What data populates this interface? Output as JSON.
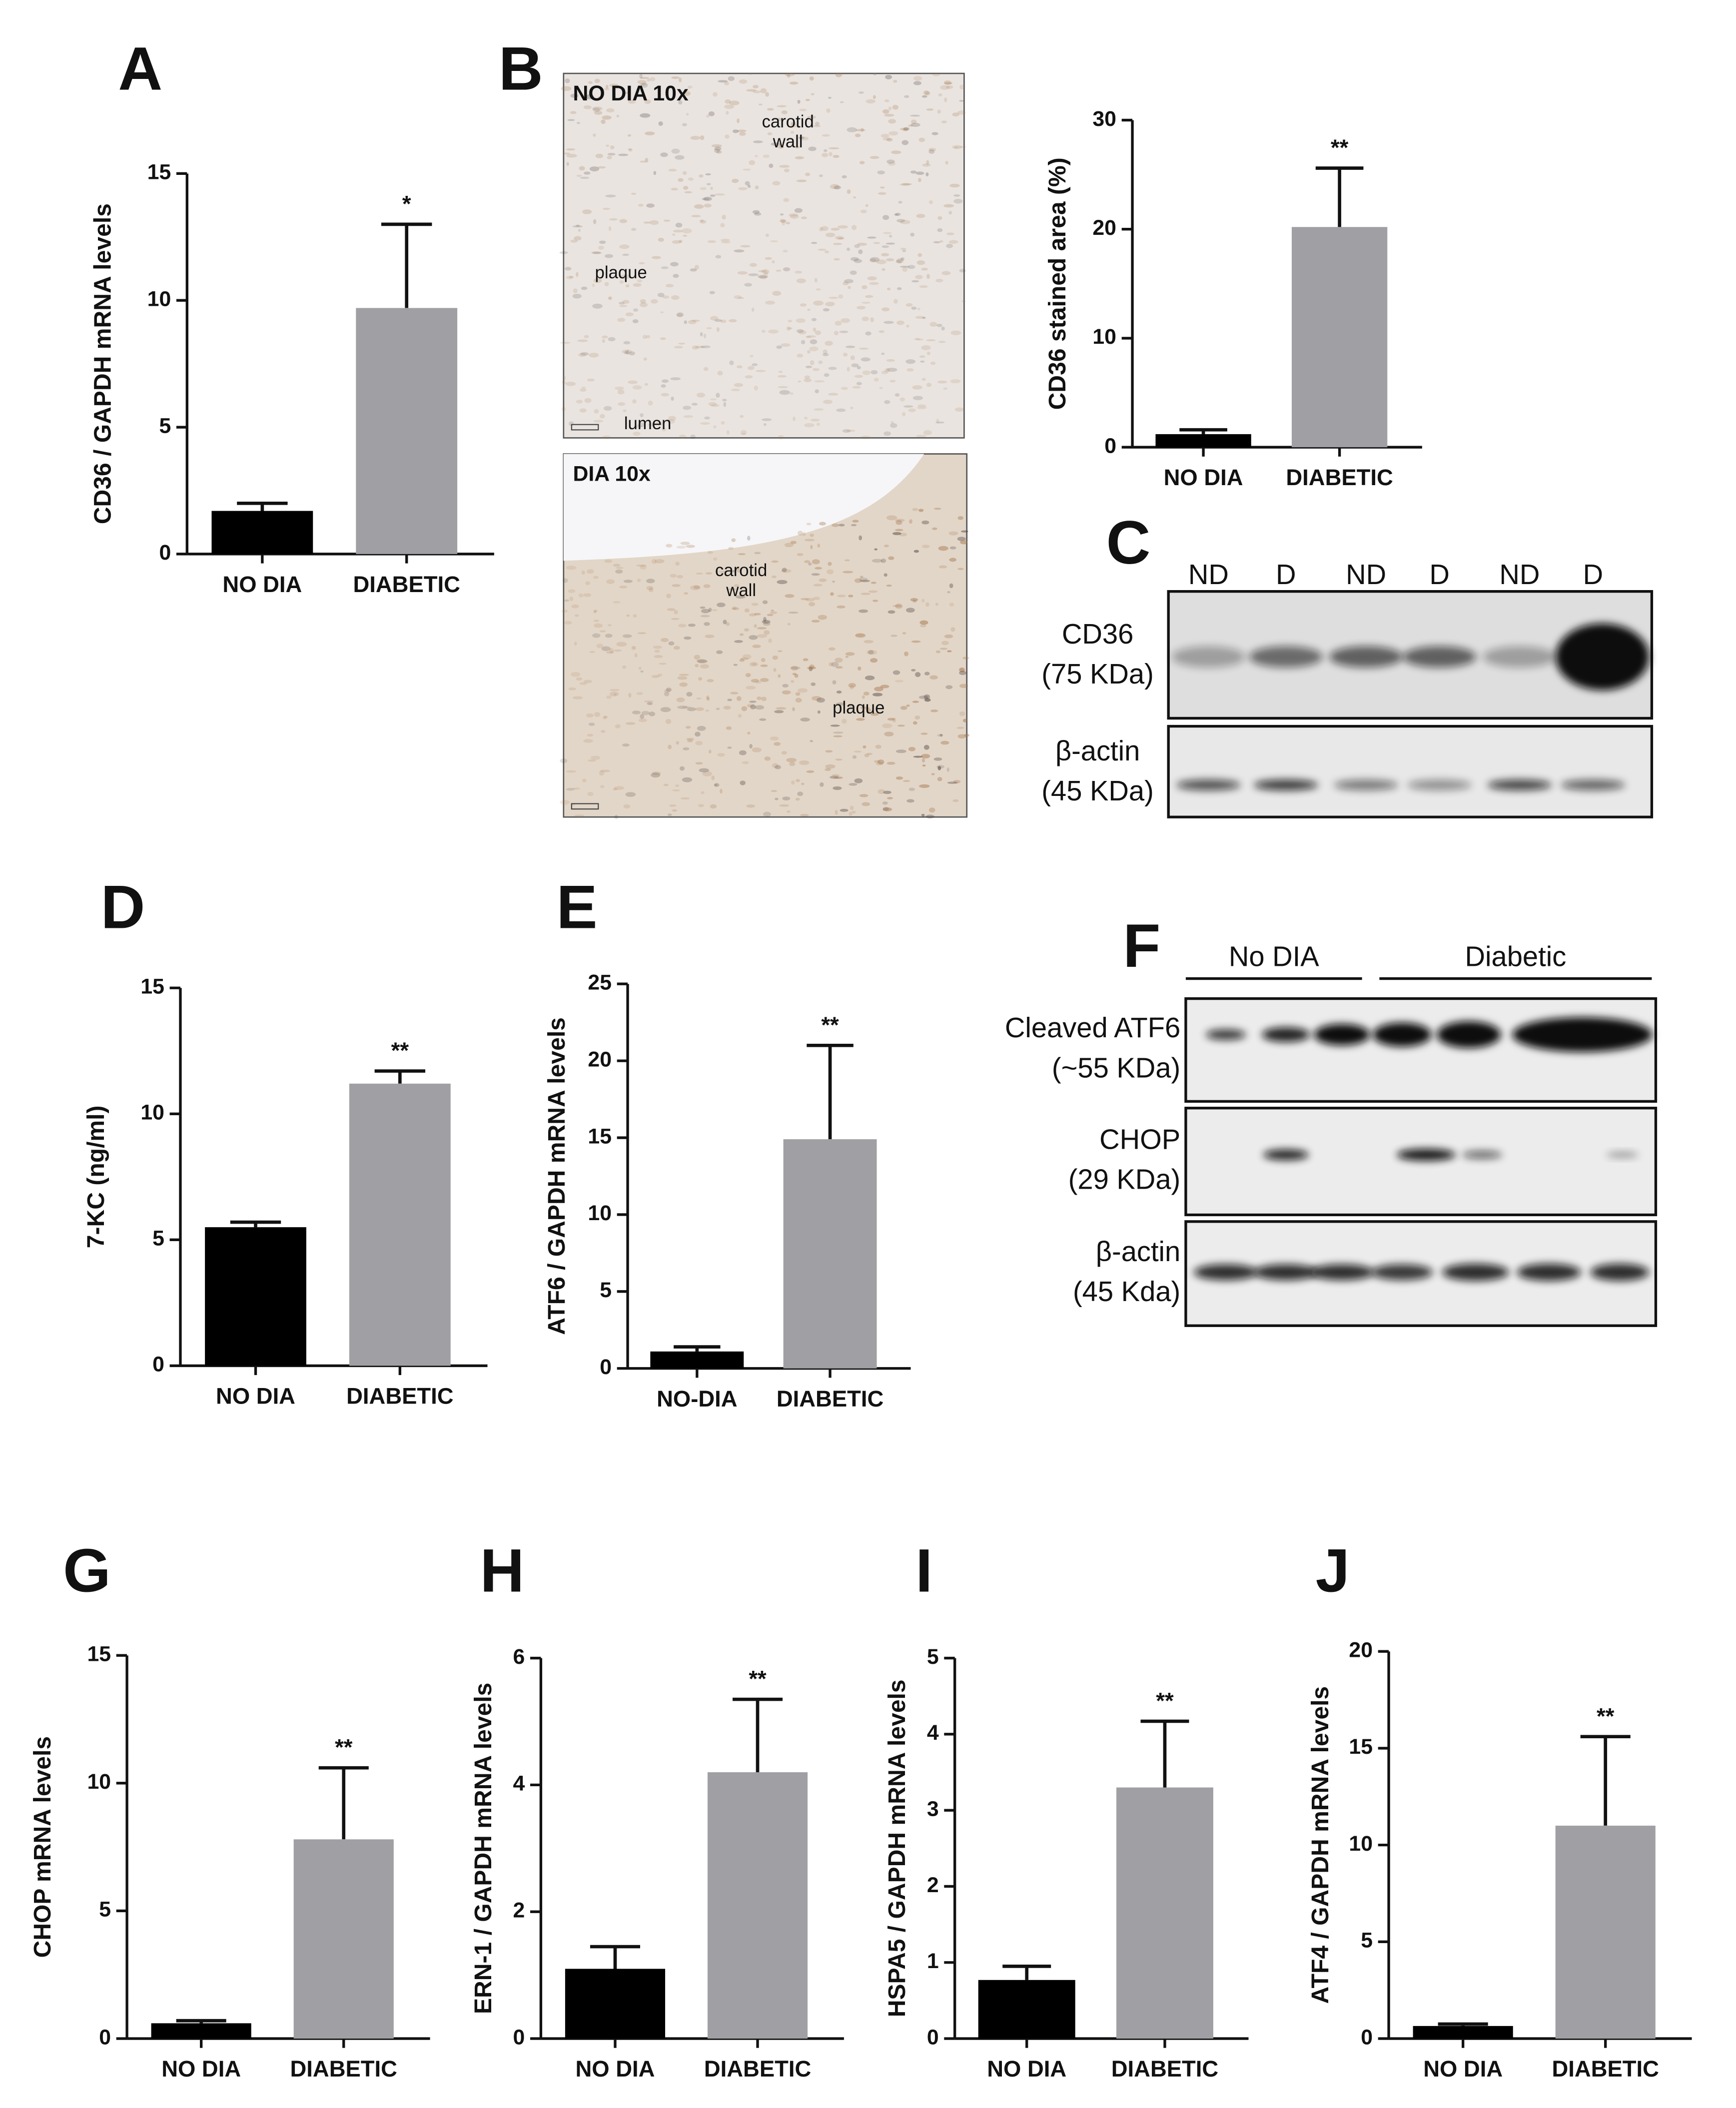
{
  "chart_data": [
    {
      "type": "bar",
      "panel": "A",
      "ylabel": "CD36 / GAPDH mRNA levels",
      "categories": [
        "NO DIA",
        "DIABETIC"
      ],
      "values": [
        1.7,
        9.7
      ],
      "errors": [
        0.3,
        3.3
      ],
      "colors": [
        "#000000",
        "#a0a0a4"
      ],
      "ylim": [
        0,
        15
      ],
      "yticks": [
        0,
        5,
        10,
        15
      ],
      "annotation": "*"
    },
    {
      "type": "bar",
      "ylabel": "CD36 stained area (%)",
      "categories": [
        "NO DIA",
        "DIABETIC"
      ],
      "values": [
        1.2,
        20.2
      ],
      "errors": [
        0.4,
        5.4
      ],
      "colors": [
        "#000000",
        "#a0a0a4"
      ],
      "ylim": [
        0,
        30
      ],
      "yticks": [
        0,
        10,
        20,
        30
      ],
      "annotation": "**"
    },
    {
      "type": "bar",
      "panel": "D",
      "ylabel": "7-KC (ng/ml)",
      "categories": [
        "NO DIA",
        "DIABETIC"
      ],
      "values": [
        5.5,
        11.2
      ],
      "errors": [
        0.2,
        0.5
      ],
      "colors": [
        "#000000",
        "#a0a0a4"
      ],
      "ylim": [
        0,
        15
      ],
      "yticks": [
        0,
        5,
        10,
        15
      ],
      "annotation": "**"
    },
    {
      "type": "bar",
      "panel": "E",
      "ylabel": "ATF6 / GAPDH mRNA levels",
      "categories": [
        "NO-DIA",
        "DIABETIC"
      ],
      "values": [
        1.1,
        14.9
      ],
      "errors": [
        0.3,
        6.1
      ],
      "colors": [
        "#000000",
        "#a0a0a4"
      ],
      "ylim": [
        0,
        25
      ],
      "yticks": [
        0,
        5,
        10,
        15,
        20,
        25
      ],
      "annotation": "**"
    },
    {
      "type": "bar",
      "panel": "G",
      "ylabel": "CHOP mRNA levels",
      "categories": [
        "NO DIA",
        "DIABETIC"
      ],
      "values": [
        0.6,
        7.8
      ],
      "errors": [
        0.1,
        2.8
      ],
      "colors": [
        "#000000",
        "#a0a0a4"
      ],
      "ylim": [
        0,
        15
      ],
      "yticks": [
        0,
        5,
        10,
        15
      ],
      "annotation": "**"
    },
    {
      "type": "bar",
      "panel": "H",
      "ylabel": "ERN-1 / GAPDH mRNA levels",
      "categories": [
        "NO DIA",
        "DIABETIC"
      ],
      "values": [
        1.1,
        4.2
      ],
      "errors": [
        0.35,
        1.15
      ],
      "colors": [
        "#000000",
        "#a0a0a4"
      ],
      "ylim": [
        0,
        6
      ],
      "yticks": [
        0,
        2,
        4,
        6
      ],
      "annotation": "**"
    },
    {
      "type": "bar",
      "panel": "I",
      "ylabel": "HSPA5 / GAPDH mRNA levels",
      "categories": [
        "NO DIA",
        "DIABETIC"
      ],
      "values": [
        0.77,
        3.3
      ],
      "errors": [
        0.18,
        0.87
      ],
      "colors": [
        "#000000",
        "#a0a0a4"
      ],
      "ylim": [
        0,
        5
      ],
      "yticks": [
        0,
        1,
        2,
        3,
        4,
        5
      ],
      "annotation": "**"
    },
    {
      "type": "bar",
      "panel": "J",
      "ylabel": "ATF4 / GAPDH mRNA levels",
      "categories": [
        "NO DIA",
        "DIABETIC"
      ],
      "values": [
        0.65,
        11.0
      ],
      "errors": [
        0.1,
        4.6
      ],
      "colors": [
        "#000000",
        "#a0a0a4"
      ],
      "ylim": [
        0,
        20
      ],
      "yticks": [
        0,
        5,
        10,
        15,
        20
      ],
      "annotation": "**"
    }
  ],
  "micrographs": {
    "letter": "B",
    "images": [
      {
        "title": "NO DIA 10x",
        "labels": [
          {
            "lines": [
              "carotid",
              "wall"
            ]
          },
          {
            "lines": [
              "plaque"
            ]
          },
          {
            "lines": [
              "lumen"
            ]
          }
        ]
      },
      {
        "title": "DIA 10x",
        "labels": [
          {
            "lines": [
              "carotid",
              "wall"
            ]
          },
          {
            "lines": [
              "plaque"
            ]
          }
        ]
      }
    ]
  },
  "blots": [
    {
      "letter": "C",
      "lanes": [
        "ND",
        "D",
        "ND",
        "D",
        "ND",
        "D"
      ],
      "rows": [
        {
          "name": "CD36",
          "size": "(75 KDa)"
        },
        {
          "name": "β-actin",
          "size": "(45 KDa)"
        }
      ]
    },
    {
      "letter": "F",
      "groups": [
        "No DIA",
        "Diabetic"
      ],
      "rows": [
        {
          "name": "Cleaved ATF6",
          "size": "(~55 KDa)"
        },
        {
          "name": "CHOP",
          "size": "(29 KDa)"
        },
        {
          "name": "β-actin",
          "size": "(45 Kda)"
        }
      ]
    }
  ]
}
